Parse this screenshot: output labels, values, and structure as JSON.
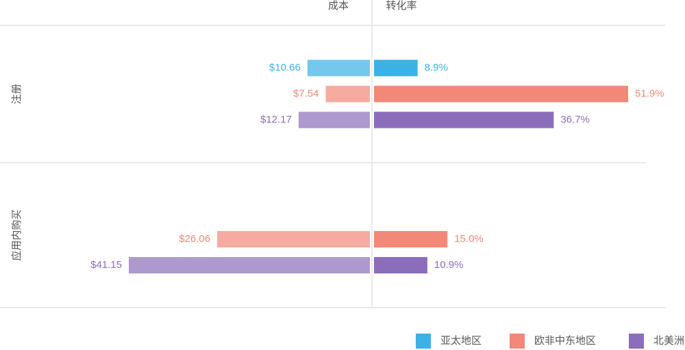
{
  "chart_data": {
    "type": "bar",
    "categories": [
      "注册",
      "应用内购买"
    ],
    "series": [
      {
        "name": "亚太地区",
        "color": "#3bb1e6"
      },
      {
        "name": "欧非中东地区",
        "color": "#f28877"
      },
      {
        "name": "北美洲",
        "color": "#8c6dbb"
      }
    ],
    "panels": [
      {
        "title": "成本",
        "series": [
          {
            "values": [
              10.66,
              null
            ],
            "value_labels": [
              "$10.66",
              null
            ]
          },
          {
            "values": [
              7.54,
              26.06
            ],
            "value_labels": [
              "$7.54",
              "$26.06"
            ]
          },
          {
            "values": [
              12.17,
              41.15
            ],
            "value_labels": [
              "$12.17",
              "$41.15"
            ]
          }
        ]
      },
      {
        "title": "转化率",
        "series": [
          {
            "values": [
              8.9,
              null
            ],
            "value_labels": [
              "8.9%",
              null
            ]
          },
          {
            "values": [
              51.9,
              15.0
            ],
            "value_labels": [
              "51.9%",
              "15.0%"
            ]
          },
          {
            "values": [
              36.7,
              10.9
            ],
            "value_labels": [
              "36.7%",
              "10.9%"
            ]
          }
        ]
      }
    ]
  }
}
